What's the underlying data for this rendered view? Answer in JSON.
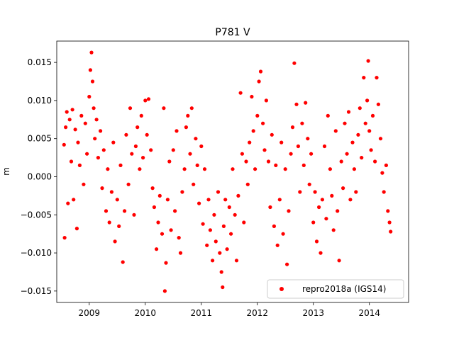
{
  "chart_data": {
    "type": "scatter",
    "title": "P781 V",
    "xlabel": "",
    "ylabel": "m",
    "xlim": [
      2008.42,
      2014.7
    ],
    "ylim": [
      -0.0165,
      0.0178
    ],
    "xticks": [
      2009,
      2010,
      2011,
      2012,
      2013,
      2014
    ],
    "xtick_labels": [
      "2009",
      "2010",
      "2011",
      "2012",
      "2013",
      "2014"
    ],
    "yticks": [
      -0.015,
      -0.01,
      -0.005,
      0.0,
      0.005,
      0.01,
      0.015
    ],
    "ytick_labels": [
      "−0.015",
      "−0.010",
      "−0.005",
      "0.000",
      "0.005",
      "0.010",
      "0.015"
    ],
    "grid": false,
    "legend_position": "lower-right",
    "series": [
      {
        "name": "repro2018a (IGS14)",
        "color": "#ff0000",
        "marker": "circle",
        "points": [
          [
            2008.55,
            0.0042
          ],
          [
            2008.56,
            -0.008
          ],
          [
            2008.58,
            0.0065
          ],
          [
            2008.6,
            0.0085
          ],
          [
            2008.62,
            -0.0035
          ],
          [
            2008.65,
            0.0075
          ],
          [
            2008.68,
            0.002
          ],
          [
            2008.7,
            0.0088
          ],
          [
            2008.72,
            -0.003
          ],
          [
            2008.75,
            0.0062
          ],
          [
            2008.78,
            -0.0068
          ],
          [
            2008.8,
            0.0045
          ],
          [
            2008.83,
            0.0015
          ],
          [
            2008.86,
            0.008
          ],
          [
            2008.9,
            -0.001
          ],
          [
            2008.93,
            0.007
          ],
          [
            2008.96,
            0.003
          ],
          [
            2009.0,
            0.0105
          ],
          [
            2009.02,
            0.014
          ],
          [
            2009.04,
            0.0163
          ],
          [
            2009.06,
            0.0125
          ],
          [
            2009.08,
            0.009
          ],
          [
            2009.1,
            0.005
          ],
          [
            2009.13,
            0.0075
          ],
          [
            2009.16,
            0.0025
          ],
          [
            2009.2,
            0.006
          ],
          [
            2009.23,
            -0.0015
          ],
          [
            2009.26,
            0.0035
          ],
          [
            2009.3,
            -0.0045
          ],
          [
            2009.33,
            0.001
          ],
          [
            2009.36,
            -0.006
          ],
          [
            2009.4,
            -0.002
          ],
          [
            2009.43,
            0.0045
          ],
          [
            2009.46,
            -0.0085
          ],
          [
            2009.5,
            -0.003
          ],
          [
            2009.53,
            -0.0065
          ],
          [
            2009.56,
            0.0015
          ],
          [
            2009.6,
            -0.0112
          ],
          [
            2009.63,
            -0.0045
          ],
          [
            2009.66,
            0.0055
          ],
          [
            2009.7,
            -0.001
          ],
          [
            2009.73,
            0.009
          ],
          [
            2009.76,
            0.003
          ],
          [
            2009.8,
            -0.005
          ],
          [
            2009.83,
            0.004
          ],
          [
            2009.86,
            0.0065
          ],
          [
            2009.9,
            0.001
          ],
          [
            2009.93,
            0.008
          ],
          [
            2009.96,
            0.0025
          ],
          [
            2010.0,
            0.01
          ],
          [
            2010.03,
            0.0055
          ],
          [
            2010.06,
            0.0102
          ],
          [
            2010.1,
            0.0035
          ],
          [
            2010.13,
            -0.0015
          ],
          [
            2010.16,
            -0.004
          ],
          [
            2010.2,
            -0.0095
          ],
          [
            2010.23,
            -0.006
          ],
          [
            2010.26,
            -0.0025
          ],
          [
            2010.3,
            -0.0075
          ],
          [
            2010.33,
            0.009
          ],
          [
            2010.35,
            -0.015
          ],
          [
            2010.37,
            -0.0113
          ],
          [
            2010.4,
            -0.003
          ],
          [
            2010.43,
            0.002
          ],
          [
            2010.46,
            -0.007
          ],
          [
            2010.5,
            0.0035
          ],
          [
            2010.53,
            -0.0045
          ],
          [
            2010.56,
            0.006
          ],
          [
            2010.6,
            -0.008
          ],
          [
            2010.63,
            -0.01
          ],
          [
            2010.66,
            -0.002
          ],
          [
            2010.7,
            0.001
          ],
          [
            2010.73,
            0.0065
          ],
          [
            2010.76,
            0.008
          ],
          [
            2010.8,
            0.003
          ],
          [
            2010.83,
            0.009
          ],
          [
            2010.86,
            -0.001
          ],
          [
            2010.9,
            0.005
          ],
          [
            2010.93,
            0.0015
          ],
          [
            2010.96,
            -0.0035
          ],
          [
            2011.0,
            0.004
          ],
          [
            2011.03,
            -0.0062
          ],
          [
            2011.06,
            0.001
          ],
          [
            2011.1,
            -0.009
          ],
          [
            2011.13,
            -0.003
          ],
          [
            2011.16,
            -0.007
          ],
          [
            2011.2,
            -0.011
          ],
          [
            2011.23,
            -0.005
          ],
          [
            2011.26,
            -0.0085
          ],
          [
            2011.3,
            -0.002
          ],
          [
            2011.33,
            -0.01
          ],
          [
            2011.36,
            -0.0125
          ],
          [
            2011.38,
            -0.0145
          ],
          [
            2011.4,
            -0.0065
          ],
          [
            2011.43,
            -0.003
          ],
          [
            2011.46,
            -0.0095
          ],
          [
            2011.5,
            -0.004
          ],
          [
            2011.53,
            -0.0075
          ],
          [
            2011.56,
            0.001
          ],
          [
            2011.6,
            -0.005
          ],
          [
            2011.63,
            -0.011
          ],
          [
            2011.66,
            -0.0025
          ],
          [
            2011.7,
            0.011
          ],
          [
            2011.73,
            0.003
          ],
          [
            2011.76,
            -0.006
          ],
          [
            2011.8,
            0.002
          ],
          [
            2011.83,
            -0.001
          ],
          [
            2011.86,
            0.0045
          ],
          [
            2011.9,
            0.0105
          ],
          [
            2011.93,
            0.006
          ],
          [
            2011.96,
            0.001
          ],
          [
            2012.0,
            0.008
          ],
          [
            2012.03,
            0.0125
          ],
          [
            2012.06,
            0.0138
          ],
          [
            2012.1,
            0.007
          ],
          [
            2012.13,
            0.0035
          ],
          [
            2012.16,
            0.01
          ],
          [
            2012.2,
            0.002
          ],
          [
            2012.23,
            -0.004
          ],
          [
            2012.26,
            0.0055
          ],
          [
            2012.3,
            -0.0065
          ],
          [
            2012.33,
            0.0015
          ],
          [
            2012.36,
            -0.009
          ],
          [
            2012.4,
            -0.003
          ],
          [
            2012.43,
            0.0045
          ],
          [
            2012.46,
            -0.0075
          ],
          [
            2012.5,
            0.001
          ],
          [
            2012.53,
            -0.0115
          ],
          [
            2012.56,
            -0.0045
          ],
          [
            2012.6,
            0.003
          ],
          [
            2012.63,
            0.0065
          ],
          [
            2012.66,
            0.0149
          ],
          [
            2012.7,
            0.0095
          ],
          [
            2012.73,
            0.004
          ],
          [
            2012.76,
            -0.002
          ],
          [
            2012.8,
            0.007
          ],
          [
            2012.83,
            0.0015
          ],
          [
            2012.86,
            0.0097
          ],
          [
            2012.9,
            0.005
          ],
          [
            2012.93,
            -0.001
          ],
          [
            2012.96,
            0.003
          ],
          [
            2013.0,
            -0.006
          ],
          [
            2013.03,
            -0.002
          ],
          [
            2013.06,
            -0.0085
          ],
          [
            2013.1,
            -0.004
          ],
          [
            2013.13,
            -0.01
          ],
          [
            2013.16,
            -0.003
          ],
          [
            2013.2,
            0.004
          ],
          [
            2013.23,
            -0.0055
          ],
          [
            2013.26,
            0.008
          ],
          [
            2013.3,
            0.001
          ],
          [
            2013.33,
            -0.0025
          ],
          [
            2013.36,
            -0.007
          ],
          [
            2013.4,
            0.006
          ],
          [
            2013.43,
            -0.0045
          ],
          [
            2013.46,
            -0.011
          ],
          [
            2013.5,
            0.002
          ],
          [
            2013.53,
            -0.0015
          ],
          [
            2013.56,
            0.007
          ],
          [
            2013.6,
            0.003
          ],
          [
            2013.63,
            0.0085
          ],
          [
            2013.66,
            -0.003
          ],
          [
            2013.7,
            0.0045
          ],
          [
            2013.73,
            0.001
          ],
          [
            2013.76,
            -0.002
          ],
          [
            2013.8,
            0.0055
          ],
          [
            2013.83,
            0.009
          ],
          [
            2013.86,
            0.0025
          ],
          [
            2013.9,
            0.013
          ],
          [
            2013.93,
            0.007
          ],
          [
            2013.96,
            0.01
          ],
          [
            2013.98,
            0.0152
          ],
          [
            2014.0,
            0.006
          ],
          [
            2014.03,
            0.0035
          ],
          [
            2014.06,
            0.008
          ],
          [
            2014.1,
            0.002
          ],
          [
            2014.13,
            0.013
          ],
          [
            2014.16,
            0.0095
          ],
          [
            2014.2,
            0.005
          ],
          [
            2014.23,
            0.0005
          ],
          [
            2014.26,
            -0.002
          ],
          [
            2014.3,
            0.0015
          ],
          [
            2014.33,
            -0.0045
          ],
          [
            2014.36,
            -0.006
          ],
          [
            2014.38,
            -0.0072
          ]
        ]
      }
    ]
  }
}
